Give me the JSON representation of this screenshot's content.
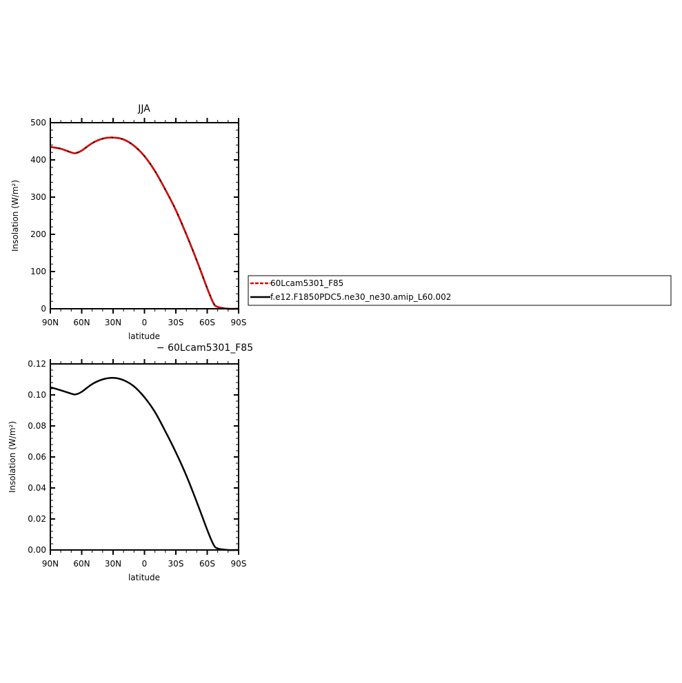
{
  "chart_data": [
    {
      "type": "line",
      "title": "JJA",
      "xlabel": "latitude",
      "ylabel": "Insolation (W/m²)",
      "xlim": [
        90,
        -90
      ],
      "ylim": [
        0,
        500
      ],
      "xticks": [
        90,
        60,
        30,
        0,
        -30,
        -60,
        -90
      ],
      "xtick_labels": [
        "90N",
        "60N",
        "30N",
        "0",
        "30S",
        "60S",
        "90S"
      ],
      "yticks": [
        0,
        100,
        200,
        300,
        400,
        500
      ],
      "ytick_labels": [
        "0",
        "100",
        "200",
        "300",
        "400",
        "500"
      ],
      "x": [
        90,
        80,
        70,
        66,
        60,
        50,
        40,
        30,
        20,
        10,
        0,
        -10,
        -20,
        -30,
        -40,
        -50,
        -60,
        -66,
        -70,
        -80,
        -90
      ],
      "series": [
        {
          "name": "60Lcam5301_F85",
          "color": "#e00000",
          "style": "dashed",
          "values": [
            435,
            430,
            420,
            418,
            425,
            445,
            457,
            460,
            455,
            438,
            410,
            370,
            320,
            265,
            200,
            130,
            55,
            15,
            5,
            0,
            0
          ]
        },
        {
          "name": "f.e12.F1850PDC5.ne30_ne30.amip_L60.002",
          "color": "#000000",
          "style": "solid",
          "values": [
            435,
            430,
            420,
            418,
            425,
            445,
            457,
            460,
            455,
            438,
            410,
            370,
            320,
            265,
            200,
            130,
            55,
            15,
            5,
            0,
            0
          ]
        }
      ],
      "legend": {
        "placement": "right",
        "entries": [
          "60Lcam5301_F85",
          "f.e12.F1850PDC5.ne30_ne30.amip_L60.002"
        ]
      },
      "grid": false
    },
    {
      "type": "line",
      "title": "− 60Lcam5301_F85",
      "xlabel": "latitude",
      "ylabel": "Insolation (W/m²)",
      "xlim": [
        90,
        -90
      ],
      "ylim": [
        0,
        0.12
      ],
      "xticks": [
        90,
        60,
        30,
        0,
        -30,
        -60,
        -90
      ],
      "xtick_labels": [
        "90N",
        "60N",
        "30N",
        "0",
        "30S",
        "60S",
        "90S"
      ],
      "yticks": [
        0,
        0.02,
        0.04,
        0.06,
        0.08,
        0.1,
        0.12
      ],
      "ytick_labels": [
        "0.00",
        "0.02",
        "0.04",
        "0.06",
        "0.08",
        "0.10",
        "0.12"
      ],
      "x": [
        90,
        80,
        70,
        66,
        60,
        50,
        40,
        30,
        20,
        10,
        0,
        -10,
        -20,
        -30,
        -40,
        -50,
        -60,
        -66,
        -70,
        -80,
        -90
      ],
      "series": [
        {
          "color": "#000000",
          "style": "solid",
          "values": [
            0.105,
            0.103,
            0.1008,
            0.1003,
            0.102,
            0.107,
            0.11,
            0.111,
            0.1095,
            0.1055,
            0.0985,
            0.089,
            0.0765,
            0.063,
            0.048,
            0.031,
            0.013,
            0.0035,
            0.001,
            0,
            0
          ]
        }
      ],
      "grid": false
    }
  ]
}
